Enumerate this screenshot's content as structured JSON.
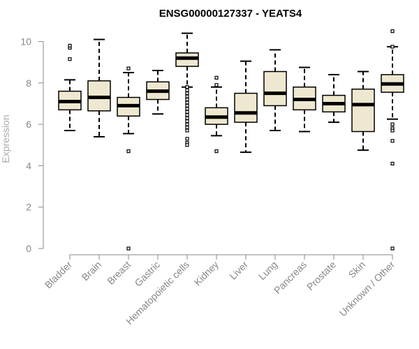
{
  "chart_data": {
    "type": "box",
    "title": "ENSG00000127337 - YEATS4",
    "xlabel": "",
    "ylabel": "Expression",
    "ylim": [
      0,
      10.5
    ],
    "yticks": [
      "0",
      "2",
      "4",
      "6",
      "8",
      "10"
    ],
    "grid": false,
    "colors": {
      "box_fill": "#efe8d0",
      "stroke": "#000000",
      "axis": "#888888"
    },
    "categories": [
      "Bladder",
      "Brain",
      "Breast",
      "Gastric",
      "Hematopoietic cells",
      "Kidney",
      "Liver",
      "Lung",
      "Pancreas",
      "Prostate",
      "Skin",
      "Unknown / Other"
    ],
    "boxes": [
      {
        "whisker_low": 5.7,
        "q1": 6.7,
        "median": 7.1,
        "q3": 7.6,
        "whisker_high": 8.15,
        "outliers": [
          9.15,
          9.7,
          9.8
        ]
      },
      {
        "whisker_low": 5.4,
        "q1": 6.65,
        "median": 7.3,
        "q3": 8.1,
        "whisker_high": 10.1,
        "outliers": []
      },
      {
        "whisker_low": 5.55,
        "q1": 6.4,
        "median": 6.9,
        "q3": 7.3,
        "whisker_high": 8.5,
        "outliers": [
          8.7,
          4.7,
          0.0
        ]
      },
      {
        "whisker_low": 6.5,
        "q1": 7.2,
        "median": 7.6,
        "q3": 8.05,
        "whisker_high": 8.6,
        "outliers": []
      },
      {
        "whisker_low": 7.8,
        "q1": 8.8,
        "median": 9.2,
        "q3": 9.45,
        "whisker_high": 10.4,
        "outliers": [
          7.8,
          7.65,
          7.5,
          7.35,
          7.2,
          7.05,
          6.9,
          6.75,
          6.6,
          6.45,
          6.3,
          6.15,
          6.0,
          5.85,
          5.7,
          5.3,
          5.1,
          5.0
        ]
      },
      {
        "whisker_low": 5.45,
        "q1": 6.0,
        "median": 6.35,
        "q3": 6.8,
        "whisker_high": 7.8,
        "outliers": [
          8.25,
          7.9,
          4.7
        ]
      },
      {
        "whisker_low": 4.65,
        "q1": 6.1,
        "median": 6.55,
        "q3": 7.5,
        "whisker_high": 9.05,
        "outliers": []
      },
      {
        "whisker_low": 5.7,
        "q1": 6.9,
        "median": 7.5,
        "q3": 8.55,
        "whisker_high": 9.6,
        "outliers": []
      },
      {
        "whisker_low": 5.65,
        "q1": 6.7,
        "median": 7.2,
        "q3": 7.8,
        "whisker_high": 8.75,
        "outliers": []
      },
      {
        "whisker_low": 6.1,
        "q1": 6.6,
        "median": 7.0,
        "q3": 7.4,
        "whisker_high": 8.4,
        "outliers": []
      },
      {
        "whisker_low": 4.75,
        "q1": 5.65,
        "median": 6.95,
        "q3": 7.7,
        "whisker_high": 8.55,
        "outliers": []
      },
      {
        "whisker_low": 6.25,
        "q1": 7.55,
        "median": 7.95,
        "q3": 8.4,
        "whisker_high": 9.75,
        "outliers": [
          10.5,
          9.75,
          6.0,
          5.8,
          5.7,
          5.2,
          4.1,
          0.0
        ]
      }
    ]
  }
}
